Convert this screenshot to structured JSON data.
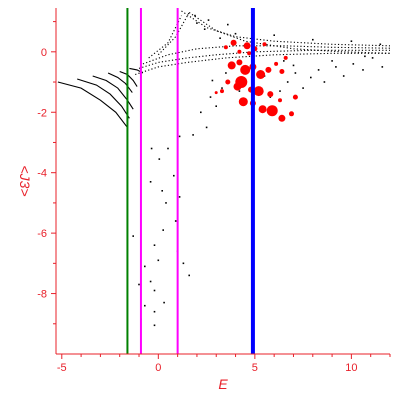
{
  "chart_data": {
    "type": "scatter",
    "title": "",
    "xlabel": "E",
    "ylabel": "<J3>",
    "xlim": [
      -5.3,
      12.0
    ],
    "ylim": [
      -10.0,
      1.45
    ],
    "x_ticks": [
      -5,
      0,
      5,
      10
    ],
    "y_ticks": [
      0,
      -2,
      -4,
      -6,
      -8
    ],
    "grid": false,
    "legend": "none",
    "colors": {
      "axis": "#e8202a",
      "points": "#000000",
      "highlight": "#ff0000",
      "line_green": "#008000",
      "line_magenta": "#ff00ff",
      "line_blue": "#0000ff"
    },
    "vertical_lines": [
      {
        "x": -1.6,
        "color": "#008000",
        "width": 2
      },
      {
        "x": -0.9,
        "color": "#ff00ff",
        "width": 2
      },
      {
        "x": 1.0,
        "color": "#ff00ff",
        "width": 2
      },
      {
        "x": 4.9,
        "color": "#0000ff",
        "width": 4
      }
    ],
    "black_arcs": [
      [
        [
          -5.2,
          -1.0
        ],
        [
          -4.0,
          -1.2
        ],
        [
          -3.0,
          -1.6
        ],
        [
          -2.2,
          -2.0
        ],
        [
          -1.6,
          -2.5
        ]
      ],
      [
        [
          -4.2,
          -0.9
        ],
        [
          -3.2,
          -1.1
        ],
        [
          -2.5,
          -1.4
        ],
        [
          -1.9,
          -1.8
        ],
        [
          -1.5,
          -2.2
        ]
      ],
      [
        [
          -3.4,
          -0.8
        ],
        [
          -2.7,
          -0.95
        ],
        [
          -2.1,
          -1.2
        ],
        [
          -1.6,
          -1.6
        ],
        [
          -1.3,
          -1.9
        ]
      ],
      [
        [
          -2.6,
          -0.7
        ],
        [
          -2.1,
          -0.85
        ],
        [
          -1.7,
          -1.05
        ],
        [
          -1.35,
          -1.35
        ]
      ],
      [
        [
          -2.0,
          -0.65
        ],
        [
          -1.6,
          -0.75
        ],
        [
          -1.3,
          -0.95
        ],
        [
          -1.1,
          -1.15
        ]
      ],
      [
        [
          -1.5,
          -0.55
        ],
        [
          -1.1,
          -0.6
        ],
        [
          -0.8,
          -0.7
        ]
      ],
      [
        [
          -1.0,
          -0.55
        ],
        [
          0.0,
          -0.35
        ],
        [
          1.5,
          -0.2
        ],
        [
          3.0,
          -0.1
        ],
        [
          5.0,
          0.0
        ],
        [
          8.0,
          0.05
        ],
        [
          12.0,
          0.05
        ]
      ],
      [
        [
          -1.2,
          -0.75
        ],
        [
          0.0,
          -0.5
        ],
        [
          1.5,
          -0.35
        ],
        [
          3.5,
          -0.2
        ],
        [
          6.0,
          -0.1
        ],
        [
          9.0,
          -0.05
        ],
        [
          12.0,
          -0.05
        ]
      ],
      [
        [
          -0.8,
          -0.4
        ],
        [
          0.5,
          -0.1
        ],
        [
          2.0,
          0.1
        ],
        [
          4.0,
          0.2
        ],
        [
          6.5,
          0.2
        ],
        [
          9.0,
          0.15
        ],
        [
          12.0,
          0.12
        ]
      ],
      [
        [
          -0.5,
          -0.2
        ],
        [
          0.5,
          0.3
        ],
        [
          1.2,
          1.2
        ]
      ],
      [
        [
          0.0,
          -0.1
        ],
        [
          0.9,
          0.5
        ],
        [
          1.6,
          1.3
        ]
      ],
      [
        [
          1.2,
          1.35
        ],
        [
          2.5,
          0.8
        ],
        [
          4.0,
          0.5
        ],
        [
          6.0,
          0.35
        ],
        [
          9.0,
          0.25
        ],
        [
          12.0,
          0.2
        ]
      ],
      [
        [
          1.6,
          1.3
        ],
        [
          3.0,
          0.7
        ],
        [
          4.5,
          0.35
        ],
        [
          7.0,
          0.1
        ],
        [
          9.5,
          0.0
        ],
        [
          12.0,
          -0.05
        ]
      ]
    ],
    "black_points": [
      [
        -0.35,
        -3.2
      ],
      [
        0.5,
        -3.2
      ],
      [
        1.1,
        -2.8
      ],
      [
        0.05,
        -3.55
      ],
      [
        -0.4,
        -4.3
      ],
      [
        0.2,
        -4.6
      ],
      [
        0.8,
        -4.1
      ],
      [
        1.1,
        -4.8
      ],
      [
        0.4,
        -5.0
      ],
      [
        0.25,
        -5.9
      ],
      [
        0.9,
        -5.6
      ],
      [
        -1.3,
        -6.1
      ],
      [
        -0.2,
        -6.4
      ],
      [
        0.0,
        -6.9
      ],
      [
        -0.7,
        -7.1
      ],
      [
        -1.0,
        -7.7
      ],
      [
        -0.4,
        -7.6
      ],
      [
        -0.2,
        -7.9
      ],
      [
        0.3,
        -8.3
      ],
      [
        -0.7,
        -8.4
      ],
      [
        -0.9,
        -8.85
      ],
      [
        -0.2,
        -8.6
      ],
      [
        -0.2,
        -9.05
      ],
      [
        1.0,
        -6.6
      ],
      [
        1.3,
        -7.0
      ],
      [
        1.6,
        -7.4
      ],
      [
        1.8,
        -2.75
      ],
      [
        2.5,
        -2.5
      ],
      [
        3.0,
        -1.8
      ],
      [
        3.3,
        -1.2
      ],
      [
        2.7,
        -1.5
      ],
      [
        2.2,
        -2.0
      ],
      [
        2.8,
        -0.95
      ],
      [
        3.5,
        -0.7
      ],
      [
        4.2,
        -1.3
      ],
      [
        4.4,
        -0.6
      ],
      [
        5.8,
        -1.5
      ],
      [
        6.3,
        -1.3
      ],
      [
        6.7,
        -1.0
      ],
      [
        7.1,
        -0.7
      ],
      [
        7.5,
        -1.2
      ],
      [
        7.9,
        -0.85
      ],
      [
        8.3,
        -0.6
      ],
      [
        8.6,
        -1.0
      ],
      [
        9.2,
        -0.5
      ],
      [
        9.6,
        -0.8
      ],
      [
        10.1,
        -0.4
      ],
      [
        10.6,
        -0.6
      ],
      [
        11.1,
        -0.2
      ],
      [
        11.6,
        -0.5
      ],
      [
        6.5,
        -0.3
      ],
      [
        7.0,
        -0.45
      ],
      [
        5.5,
        -0.8
      ],
      [
        4.0,
        0.6
      ],
      [
        3.2,
        0.45
      ],
      [
        2.4,
        0.75
      ],
      [
        2.0,
        0.95
      ],
      [
        1.9,
        1.2
      ],
      [
        2.6,
        1.05
      ],
      [
        3.6,
        0.9
      ],
      [
        6.0,
        0.55
      ],
      [
        8.0,
        0.4
      ],
      [
        10.0,
        0.35
      ],
      [
        11.5,
        0.25
      ],
      [
        9.0,
        -0.3
      ],
      [
        10.7,
        -0.15
      ]
    ],
    "red_points": [
      [
        3.5,
        0.15,
        2.0
      ],
      [
        3.9,
        0.3,
        3.0
      ],
      [
        4.2,
        0.0,
        2.0
      ],
      [
        4.6,
        0.2,
        3.5
      ],
      [
        5.0,
        0.1,
        2.5
      ],
      [
        5.5,
        0.25,
        2.0
      ],
      [
        3.8,
        -0.45,
        4.0
      ],
      [
        4.2,
        -0.35,
        3.0
      ],
      [
        4.5,
        -0.6,
        5.0
      ],
      [
        4.9,
        -0.5,
        3.5
      ],
      [
        5.3,
        -0.75,
        4.5
      ],
      [
        5.7,
        -0.6,
        3.0
      ],
      [
        6.1,
        -0.4,
        2.0
      ],
      [
        6.4,
        -0.65,
        2.5
      ],
      [
        3.6,
        -1.0,
        2.5
      ],
      [
        4.1,
        -1.15,
        4.0
      ],
      [
        4.3,
        -1.0,
        6.0
      ],
      [
        4.8,
        -1.25,
        3.0
      ],
      [
        5.2,
        -1.3,
        5.0
      ],
      [
        5.8,
        -1.4,
        3.0
      ],
      [
        6.3,
        -1.6,
        2.0
      ],
      [
        4.4,
        -1.65,
        4.5
      ],
      [
        4.9,
        -1.7,
        3.0
      ],
      [
        5.4,
        -1.9,
        4.0
      ],
      [
        5.9,
        -1.95,
        5.5
      ],
      [
        6.4,
        -2.2,
        3.5
      ],
      [
        6.9,
        -2.05,
        2.5
      ],
      [
        7.1,
        -1.5,
        2.5
      ],
      [
        3.3,
        -1.3,
        2.0
      ],
      [
        6.6,
        -0.2,
        2.0
      ],
      [
        3.0,
        -1.35,
        1.5
      ],
      [
        4.7,
        -0.05,
        2.0
      ]
    ]
  }
}
